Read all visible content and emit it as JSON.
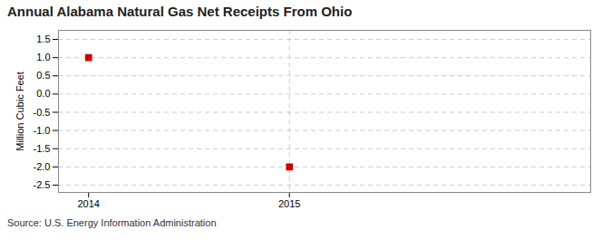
{
  "chart_data": {
    "type": "scatter",
    "title": "Annual Alabama Natural Gas Net Receipts From Ohio",
    "ylabel": "Million Cubic Feet",
    "source": "Source: U.S. Energy Information Administration",
    "x": [
      2014,
      2015
    ],
    "values": [
      1.0,
      -2.0
    ],
    "color": "#cc0000",
    "marker": "square",
    "xlim": [
      2013.85,
      2016.5
    ],
    "ylim": [
      -2.7,
      1.75
    ],
    "xticks": [
      2014,
      2015
    ],
    "yticks": [
      -2.5,
      {
        "value": -2.0,
        "label": "-2.0"
      },
      -1.5,
      {
        "value": -1.0,
        "label": "-1.0"
      },
      -0.5,
      {
        "value": 0.0,
        "label": "0.0"
      },
      0.5,
      {
        "value": 1.0,
        "label": "1.0"
      },
      1.5
    ],
    "grid": true,
    "vlines": [
      2015
    ]
  }
}
